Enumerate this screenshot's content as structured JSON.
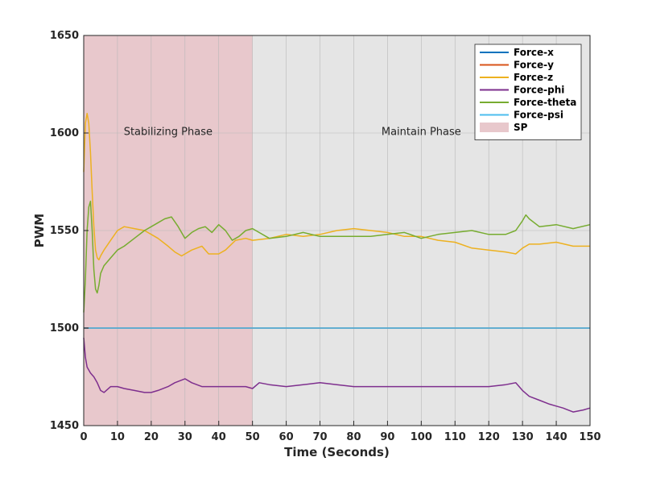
{
  "chart_data": {
    "type": "line",
    "title": "",
    "xlabel": "Time (Seconds)",
    "ylabel": "PWM",
    "xlim": [
      0,
      150
    ],
    "ylim": [
      1450,
      1650
    ],
    "xticks": [
      0,
      10,
      20,
      30,
      40,
      50,
      60,
      70,
      80,
      90,
      100,
      110,
      120,
      130,
      140,
      150
    ],
    "yticks": [
      1450,
      1500,
      1550,
      1600,
      1650
    ],
    "grid": true,
    "legend_position": "top-right",
    "phases": [
      {
        "name": "SP",
        "label": "Stabilizing Phase",
        "x_range": [
          0,
          50
        ],
        "color": "#e8c8cc"
      },
      {
        "name": "",
        "label": "Maintain Phase",
        "x_range": [
          50,
          150
        ],
        "color": "#e5e5e5"
      }
    ],
    "series": [
      {
        "name": "Force-x",
        "color": "#0072bd",
        "x": [
          0,
          150
        ],
        "y": [
          1500,
          1500
        ]
      },
      {
        "name": "Force-y",
        "color": "#d95319",
        "x": [
          0,
          150
        ],
        "y": [
          1500,
          1500
        ]
      },
      {
        "name": "Force-z",
        "color": "#edb120",
        "x": [
          0,
          0.5,
          1,
          1.5,
          2,
          2.5,
          3,
          3.5,
          4,
          4.5,
          5,
          6,
          8,
          10,
          12,
          15,
          18,
          20,
          22,
          25,
          27,
          29,
          30,
          32,
          35,
          37,
          40,
          42,
          45,
          48,
          50,
          55,
          60,
          65,
          70,
          75,
          80,
          85,
          90,
          95,
          100,
          105,
          110,
          115,
          120,
          125,
          128,
          130,
          132,
          135,
          140,
          145,
          150
        ],
        "y": [
          1580,
          1605,
          1610,
          1605,
          1590,
          1570,
          1552,
          1540,
          1536,
          1535,
          1537,
          1540,
          1545,
          1550,
          1552,
          1551,
          1550,
          1548,
          1546,
          1542,
          1539,
          1537,
          1538,
          1540,
          1542,
          1538,
          1538,
          1540,
          1545,
          1546,
          1545,
          1546,
          1548,
          1547,
          1548,
          1550,
          1551,
          1550,
          1549,
          1547,
          1547,
          1545,
          1544,
          1541,
          1540,
          1539,
          1538,
          1541,
          1543,
          1543,
          1544,
          1542,
          1542
        ]
      },
      {
        "name": "Force-phi",
        "color": "#7e2f8e",
        "x": [
          0,
          0.5,
          1,
          2,
          3,
          4,
          5,
          6,
          8,
          10,
          12,
          15,
          18,
          20,
          22,
          25,
          27,
          30,
          32,
          35,
          40,
          45,
          48,
          50,
          52,
          55,
          60,
          65,
          70,
          75,
          80,
          85,
          90,
          95,
          100,
          105,
          110,
          115,
          120,
          125,
          128,
          130,
          132,
          135,
          138,
          140,
          142,
          145,
          148,
          150
        ],
        "y": [
          1495,
          1485,
          1480,
          1477,
          1475,
          1472,
          1468,
          1467,
          1470,
          1470,
          1469,
          1468,
          1467,
          1467,
          1468,
          1470,
          1472,
          1474,
          1472,
          1470,
          1470,
          1470,
          1470,
          1469,
          1472,
          1471,
          1470,
          1471,
          1472,
          1471,
          1470,
          1470,
          1470,
          1470,
          1470,
          1470,
          1470,
          1470,
          1470,
          1471,
          1472,
          1468,
          1465,
          1463,
          1461,
          1460,
          1459,
          1457,
          1458,
          1459
        ]
      },
      {
        "name": "Force-theta",
        "color": "#77ac30",
        "x": [
          0,
          0.5,
          1,
          1.5,
          2,
          2.5,
          3,
          3.5,
          4,
          4.5,
          5,
          6,
          8,
          10,
          12,
          15,
          18,
          20,
          22,
          24,
          26,
          28,
          30,
          32,
          34,
          36,
          38,
          40,
          42,
          44,
          46,
          48,
          50,
          55,
          60,
          65,
          70,
          75,
          80,
          85,
          90,
          95,
          100,
          105,
          110,
          115,
          120,
          125,
          128,
          130,
          131,
          132,
          135,
          140,
          145,
          150
        ],
        "y": [
          1508,
          1525,
          1550,
          1562,
          1565,
          1550,
          1530,
          1520,
          1518,
          1522,
          1528,
          1532,
          1536,
          1540,
          1542,
          1546,
          1550,
          1552,
          1554,
          1556,
          1557,
          1552,
          1546,
          1549,
          1551,
          1552,
          1549,
          1553,
          1550,
          1545,
          1547,
          1550,
          1551,
          1546,
          1547,
          1549,
          1547,
          1547,
          1547,
          1547,
          1548,
          1549,
          1546,
          1548,
          1549,
          1550,
          1548,
          1548,
          1550,
          1555,
          1558,
          1556,
          1552,
          1553,
          1551,
          1553
        ]
      },
      {
        "name": "Force-psi",
        "color": "#4dbeee",
        "x": [
          0,
          150
        ],
        "y": [
          1500,
          1500
        ]
      }
    ],
    "legend": [
      "Force-x",
      "Force-y",
      "Force-z",
      "Force-phi",
      "Force-theta",
      "Force-psi",
      "SP"
    ]
  }
}
